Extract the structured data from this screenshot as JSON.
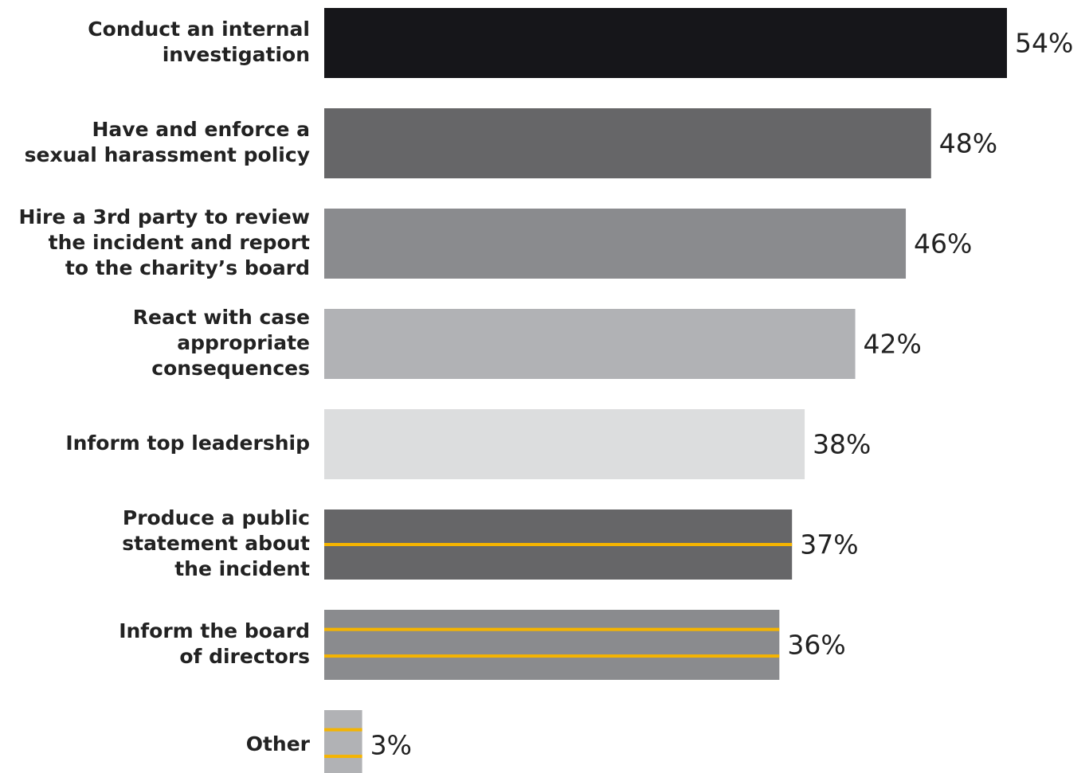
{
  "chart_data": {
    "type": "bar",
    "orientation": "horizontal",
    "categories": [
      [
        "Conduct an internal",
        "investigation"
      ],
      [
        "Have and enforce a",
        "sexual harassment policy"
      ],
      [
        "Hire a 3rd party to review",
        "the incident and report",
        "to the charity’s board"
      ],
      [
        "React with case",
        "appropriate",
        "consequences"
      ],
      [
        "Inform top leadership"
      ],
      [
        "Produce a public",
        "statement about",
        "the incident"
      ],
      [
        "Inform the board",
        "of directors"
      ],
      [
        "Other"
      ]
    ],
    "values": [
      54,
      48,
      46,
      42,
      38,
      37,
      36,
      3
    ],
    "value_labels": [
      "54%",
      "48%",
      "46%",
      "42%",
      "38%",
      "37%",
      "36%",
      "3%"
    ],
    "colors": [
      "#16161a",
      "#666668",
      "#8a8b8e",
      "#b1b2b5",
      "#dcddde",
      "#666668",
      "#8a8b8e",
      "#b1b2b5"
    ],
    "stripes": [
      0,
      0,
      0,
      0,
      0,
      1,
      2,
      2
    ],
    "stripe_color": "#f5b400"
  }
}
